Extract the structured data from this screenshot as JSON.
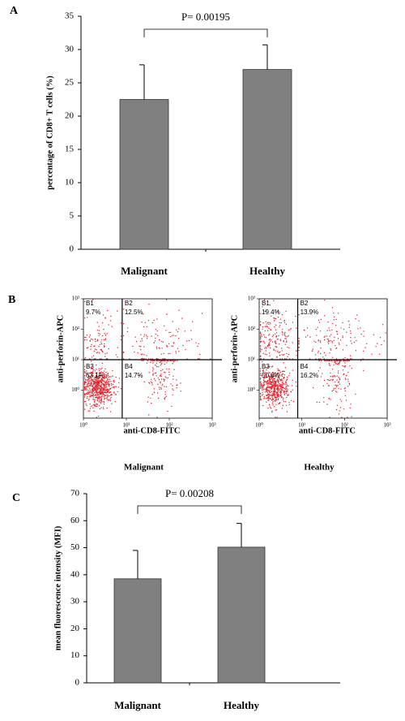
{
  "chart_data": [
    {
      "type": "bar",
      "panel": "A",
      "ylabel": "percentage of CD8+ T cells (%)",
      "annotation": "P= 0.00195",
      "categories": [
        "Malignant",
        "Healthy"
      ],
      "values": [
        22.5,
        27
      ],
      "errors": [
        5.2,
        3.7
      ],
      "color": "#808080",
      "ylim": [
        0,
        35
      ],
      "yticks": [
        0,
        5,
        10,
        15,
        20,
        25,
        30,
        35
      ]
    },
    {
      "type": "flow",
      "panel": "B",
      "title": "Malignant",
      "xlabel": "anti-CD8-FITC",
      "ylabel": "anti-perforin-APC",
      "quadrants": [
        "B1",
        "B2",
        "B3",
        "B4"
      ],
      "values": [
        9.7,
        12.5,
        63.1,
        14.7
      ],
      "value_labels": [
        "9.7%",
        "12.5%",
        "63.1%",
        "14.7%"
      ],
      "log_scale": true,
      "xlim": [
        1,
        1000
      ],
      "ylim": [
        0.12,
        1000
      ],
      "xgate": 8,
      "ygate": 10,
      "color": "#e8202a",
      "xticks": [
        {
          "value": 1,
          "label": "10⁰"
        },
        {
          "value": 10,
          "label": "10¹"
        },
        {
          "value": 100,
          "label": "10²"
        },
        {
          "value": 1000,
          "label": "10³"
        }
      ],
      "yticks": [
        {
          "value": 1,
          "label": "10⁰"
        },
        {
          "value": 10,
          "label": "10¹"
        },
        {
          "value": 100,
          "label": "10²"
        },
        {
          "value": 1000,
          "label": "10³"
        }
      ]
    },
    {
      "type": "flow",
      "title": "Healthy",
      "xlabel": "anti-CD8-FITC",
      "ylabel": "anti-perforin-APC",
      "quadrants": [
        "B1",
        "B2",
        "B3",
        "B4"
      ],
      "values": [
        19.4,
        13.9,
        50.6,
        16.2
      ],
      "value_labels": [
        "19.4%",
        "13.9%",
        "50.6%",
        "16.2%"
      ],
      "log_scale": true,
      "xlim": [
        1,
        1000
      ],
      "ylim": [
        0.12,
        1000
      ],
      "xgate": 8,
      "ygate": 10,
      "color": "#e8202a",
      "xticks": [
        {
          "value": 1,
          "label": "10⁰"
        },
        {
          "value": 10,
          "label": "10¹"
        },
        {
          "value": 100,
          "label": "10²"
        },
        {
          "value": 1000,
          "label": "10³"
        }
      ],
      "yticks": [
        {
          "value": 1,
          "label": "10⁰"
        },
        {
          "value": 10,
          "label": "10¹"
        },
        {
          "value": 100,
          "label": "10²"
        },
        {
          "value": 1000,
          "label": "10³"
        }
      ]
    },
    {
      "type": "bar",
      "panel": "C",
      "ylabel": "mean fluorescence intensity (MFI)",
      "annotation": "P= 0.00208",
      "categories": [
        "Malignant",
        "Healthy"
      ],
      "values": [
        38.5,
        50.2
      ],
      "errors": [
        10.5,
        8.8
      ],
      "color": "#808080",
      "ylim": [
        0,
        70
      ],
      "yticks": [
        0,
        10,
        20,
        30,
        40,
        50,
        60,
        70
      ]
    }
  ]
}
